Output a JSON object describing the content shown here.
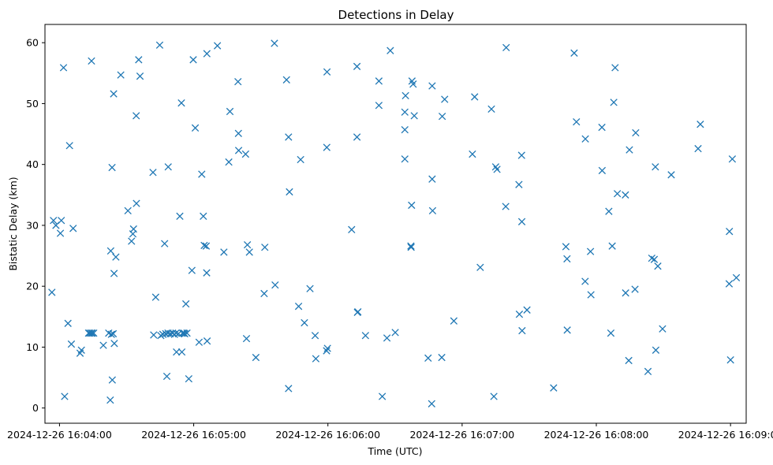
{
  "chart_data": {
    "type": "scatter",
    "title": "Detections in Delay",
    "xlabel": "Time (UTC)",
    "ylabel": "Bistatic Delay (km)",
    "marker": "x",
    "series_color": "#1f77b4",
    "x_unit": "seconds after 2024-12-26 16:04:00 UTC",
    "xlim": [
      -6.5,
      307
    ],
    "ylim": [
      -2.5,
      63
    ],
    "x_ticks": [
      {
        "value": 0,
        "label": "2024-12-26 16:04:00"
      },
      {
        "value": 60,
        "label": "2024-12-26 16:05:00"
      },
      {
        "value": 120,
        "label": "2024-12-26 16:06:00"
      },
      {
        "value": 180,
        "label": "2024-12-26 16:07:00"
      },
      {
        "value": 240,
        "label": "2024-12-26 16:08:00"
      },
      {
        "value": 300,
        "label": "2024-12-26 16:09:00"
      }
    ],
    "y_ticks": [
      {
        "value": 0,
        "label": "0"
      },
      {
        "value": 10,
        "label": "10"
      },
      {
        "value": 20,
        "label": "20"
      },
      {
        "value": 30,
        "label": "30"
      },
      {
        "value": 40,
        "label": "40"
      },
      {
        "value": 50,
        "label": "50"
      },
      {
        "value": 60,
        "label": "60"
      }
    ],
    "grid": false,
    "points": [
      [
        -3.4,
        19.0
      ],
      [
        -2.7,
        30.8
      ],
      [
        -1.6,
        30.0
      ],
      [
        0.4,
        28.7
      ],
      [
        0.8,
        30.8
      ],
      [
        1.8,
        55.9
      ],
      [
        2.3,
        1.9
      ],
      [
        3.8,
        13.9
      ],
      [
        4.5,
        43.1
      ],
      [
        5.3,
        10.5
      ],
      [
        6.1,
        29.5
      ],
      [
        9.2,
        9.0
      ],
      [
        9.8,
        9.5
      ],
      [
        13.0,
        12.3
      ],
      [
        13.6,
        12.3
      ],
      [
        14.3,
        12.3
      ],
      [
        14.6,
        12.3
      ],
      [
        15.3,
        12.3
      ],
      [
        14.3,
        57.0
      ],
      [
        19.6,
        10.3
      ],
      [
        22.0,
        12.3
      ],
      [
        22.7,
        1.3
      ],
      [
        22.9,
        25.8
      ],
      [
        23.2,
        12.1
      ],
      [
        23.5,
        39.5
      ],
      [
        23.6,
        4.6
      ],
      [
        24.0,
        12.2
      ],
      [
        24.2,
        51.6
      ],
      [
        24.4,
        22.1
      ],
      [
        24.5,
        10.6
      ],
      [
        25.2,
        24.8
      ],
      [
        27.4,
        54.7
      ],
      [
        30.6,
        32.4
      ],
      [
        32.2,
        27.4
      ],
      [
        32.8,
        28.6
      ],
      [
        33.1,
        29.4
      ],
      [
        34.3,
        48.0
      ],
      [
        34.4,
        33.6
      ],
      [
        35.4,
        57.2
      ],
      [
        36.0,
        54.5
      ],
      [
        41.8,
        38.7
      ],
      [
        42.1,
        12.0
      ],
      [
        43.0,
        18.2
      ],
      [
        44.8,
        59.6
      ],
      [
        45.3,
        11.9
      ],
      [
        46.2,
        12.1
      ],
      [
        47.0,
        27.0
      ],
      [
        47.5,
        12.2
      ],
      [
        48.0,
        5.2
      ],
      [
        48.5,
        12.3
      ],
      [
        48.6,
        39.6
      ],
      [
        49.5,
        12.2
      ],
      [
        50.5,
        12.3
      ],
      [
        51.4,
        12.1
      ],
      [
        52.1,
        12.3
      ],
      [
        52.3,
        9.2
      ],
      [
        53.2,
        12.2
      ],
      [
        53.8,
        31.5
      ],
      [
        54.7,
        9.2
      ],
      [
        54.5,
        50.1
      ],
      [
        55.0,
        12.3
      ],
      [
        55.6,
        12.3
      ],
      [
        56.0,
        12.2
      ],
      [
        56.5,
        17.1
      ],
      [
        57.0,
        12.3
      ],
      [
        57.8,
        4.8
      ],
      [
        59.2,
        22.6
      ],
      [
        59.8,
        57.2
      ],
      [
        60.7,
        46.0
      ],
      [
        62.4,
        10.8
      ],
      [
        63.6,
        38.4
      ],
      [
        64.3,
        31.5
      ],
      [
        64.7,
        26.7
      ],
      [
        65.6,
        26.6
      ],
      [
        65.8,
        22.2
      ],
      [
        65.9,
        58.2
      ],
      [
        66.0,
        11.0
      ],
      [
        70.6,
        59.5
      ],
      [
        73.5,
        25.6
      ],
      [
        75.7,
        40.4
      ],
      [
        76.2,
        48.7
      ],
      [
        79.8,
        53.6
      ],
      [
        80.0,
        45.1
      ],
      [
        80.1,
        42.3
      ],
      [
        83.2,
        41.7
      ],
      [
        83.6,
        11.4
      ],
      [
        84.0,
        26.8
      ],
      [
        84.9,
        25.6
      ],
      [
        87.8,
        8.3
      ],
      [
        91.5,
        18.8
      ],
      [
        91.8,
        26.4
      ],
      [
        96.1,
        59.9
      ],
      [
        96.4,
        20.2
      ],
      [
        101.5,
        53.9
      ],
      [
        102.4,
        44.5
      ],
      [
        102.4,
        3.2
      ],
      [
        102.8,
        35.5
      ],
      [
        106.9,
        16.7
      ],
      [
        107.8,
        40.8
      ],
      [
        109.5,
        14.0
      ],
      [
        112.0,
        19.6
      ],
      [
        114.3,
        11.9
      ],
      [
        114.6,
        8.1
      ],
      [
        119.4,
        9.4
      ],
      [
        119.5,
        42.8
      ],
      [
        119.6,
        55.2
      ],
      [
        119.8,
        9.8
      ],
      [
        130.6,
        29.3
      ],
      [
        133.0,
        44.5
      ],
      [
        133.0,
        56.1
      ],
      [
        133.2,
        15.7
      ],
      [
        133.4,
        15.8
      ],
      [
        136.8,
        11.9
      ],
      [
        142.8,
        49.7
      ],
      [
        142.8,
        53.7
      ],
      [
        144.3,
        1.9
      ],
      [
        146.4,
        11.5
      ],
      [
        147.9,
        58.7
      ],
      [
        150.1,
        12.4
      ],
      [
        154.4,
        40.9
      ],
      [
        154.4,
        45.7
      ],
      [
        154.4,
        48.6
      ],
      [
        154.7,
        51.3
      ],
      [
        157.1,
        26.6
      ],
      [
        157.2,
        26.4
      ],
      [
        157.4,
        33.3
      ],
      [
        157.6,
        53.7
      ],
      [
        158.1,
        53.2
      ],
      [
        158.6,
        48.0
      ],
      [
        164.8,
        8.2
      ],
      [
        166.4,
        0.7
      ],
      [
        166.6,
        52.9
      ],
      [
        166.6,
        37.6
      ],
      [
        166.8,
        32.4
      ],
      [
        170.9,
        8.3
      ],
      [
        171.1,
        47.9
      ],
      [
        172.2,
        50.7
      ],
      [
        176.3,
        14.3
      ],
      [
        184.6,
        41.7
      ],
      [
        185.6,
        51.1
      ],
      [
        188.1,
        23.1
      ],
      [
        193.1,
        49.1
      ],
      [
        194.2,
        1.9
      ],
      [
        195.0,
        39.6
      ],
      [
        195.6,
        39.2
      ],
      [
        199.5,
        33.1
      ],
      [
        199.7,
        59.2
      ],
      [
        205.4,
        36.7
      ],
      [
        205.6,
        15.4
      ],
      [
        206.6,
        41.5
      ],
      [
        206.7,
        30.6
      ],
      [
        206.8,
        12.7
      ],
      [
        209.0,
        16.1
      ],
      [
        220.9,
        3.3
      ],
      [
        226.4,
        26.5
      ],
      [
        226.9,
        24.5
      ],
      [
        227.0,
        12.8
      ],
      [
        230.1,
        58.3
      ],
      [
        231.1,
        47.0
      ],
      [
        235.0,
        20.8
      ],
      [
        235.1,
        44.2
      ],
      [
        237.4,
        25.7
      ],
      [
        237.6,
        18.6
      ],
      [
        242.5,
        46.1
      ],
      [
        242.6,
        39.0
      ],
      [
        245.6,
        32.3
      ],
      [
        246.5,
        12.3
      ],
      [
        247.1,
        26.6
      ],
      [
        247.8,
        50.2
      ],
      [
        248.4,
        55.9
      ],
      [
        249.4,
        35.2
      ],
      [
        253.0,
        35.0
      ],
      [
        253.1,
        18.9
      ],
      [
        254.5,
        7.8
      ],
      [
        254.8,
        42.4
      ],
      [
        257.3,
        19.5
      ],
      [
        257.6,
        45.2
      ],
      [
        263.1,
        6.0
      ],
      [
        264.8,
        24.6
      ],
      [
        265.9,
        24.4
      ],
      [
        266.4,
        39.6
      ],
      [
        266.6,
        9.5
      ],
      [
        267.5,
        23.3
      ],
      [
        269.6,
        13.0
      ],
      [
        273.5,
        38.3
      ],
      [
        285.5,
        42.6
      ],
      [
        286.5,
        46.6
      ],
      [
        299.4,
        20.4
      ],
      [
        299.5,
        29.0
      ],
      [
        300.0,
        7.9
      ],
      [
        300.8,
        40.9
      ],
      [
        302.6,
        21.4
      ]
    ]
  }
}
